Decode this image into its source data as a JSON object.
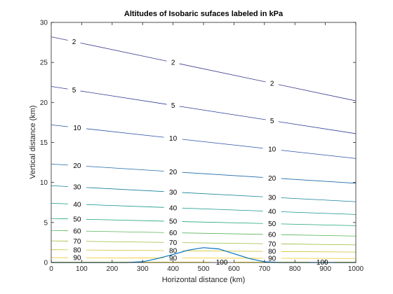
{
  "chart_data": {
    "type": "line",
    "title": "Altitudes of Isobaric sufaces labeled in kPa",
    "xlabel": "Horizontal distance (km)",
    "ylabel": "Vertical distance (km)",
    "xlim": [
      0,
      1000
    ],
    "ylim": [
      0,
      30
    ],
    "xticks": [
      0,
      100,
      200,
      300,
      400,
      500,
      600,
      700,
      800,
      900,
      1000
    ],
    "yticks": [
      0,
      5,
      10,
      15,
      20,
      25,
      30
    ],
    "grid": false,
    "isobars": [
      {
        "level": "2",
        "y_left": 28.2,
        "y_right": 20.2,
        "color": "#3b3b8f",
        "label_x": [
          75,
          400,
          725
        ]
      },
      {
        "level": "5",
        "y_left": 22.0,
        "y_right": 16.1,
        "color": "#2f3f96",
        "label_x": [
          75,
          400,
          725
        ]
      },
      {
        "level": "10",
        "y_left": 17.2,
        "y_right": 13.0,
        "color": "#2a52a6",
        "label_x": [
          85,
          400,
          725
        ]
      },
      {
        "level": "20",
        "y_left": 12.3,
        "y_right": 9.9,
        "color": "#1f6aa8",
        "label_x": [
          85,
          400,
          725
        ]
      },
      {
        "level": "30",
        "y_left": 9.6,
        "y_right": 7.6,
        "color": "#16809c",
        "label_x": [
          85,
          400,
          725
        ]
      },
      {
        "level": "40",
        "y_left": 7.4,
        "y_right": 6.0,
        "color": "#13968c",
        "label_x": [
          85,
          400,
          725
        ]
      },
      {
        "level": "50",
        "y_left": 5.5,
        "y_right": 4.6,
        "color": "#1fa576",
        "label_x": [
          85,
          400,
          725
        ]
      },
      {
        "level": "60",
        "y_left": 4.0,
        "y_right": 3.3,
        "color": "#5bb55a",
        "label_x": [
          85,
          400,
          725
        ]
      },
      {
        "level": "70",
        "y_left": 2.7,
        "y_right": 2.2,
        "color": "#9dbd3e",
        "label_x": [
          85,
          400,
          725
        ]
      },
      {
        "level": "80",
        "y_left": 1.6,
        "y_right": 1.3,
        "color": "#cfc12c",
        "label_x": [
          85,
          400,
          725
        ]
      },
      {
        "level": "90",
        "y_left": 0.6,
        "y_right": 0.5,
        "color": "#ecc821",
        "label_x": [
          85,
          400,
          725
        ]
      },
      {
        "level": "100",
        "y_left": 0.05,
        "y_right": 0.05,
        "color": "#f6e11a",
        "label_x": [
          560,
          890
        ]
      }
    ],
    "terrain": {
      "color": "#0072bd",
      "x": [
        0,
        250,
        300,
        350,
        400,
        450,
        500,
        550,
        600,
        650,
        700,
        750,
        1000
      ],
      "y": [
        0,
        0,
        0.1,
        0.5,
        1.0,
        1.55,
        1.85,
        1.7,
        1.1,
        0.5,
        0.1,
        0,
        0
      ]
    }
  }
}
